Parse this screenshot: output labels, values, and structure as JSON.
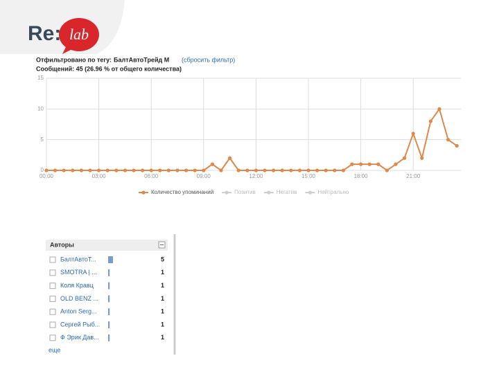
{
  "logo": {
    "left": "Re:",
    "right": "lab"
  },
  "header": {
    "filter_label": "Отфильтровано по тегу:",
    "filter_tag": "БалтАвтоТрейд М",
    "reset": "(сбросить фильтр)",
    "messages": "Сообщений: 45 (26.96 % от общего количества)"
  },
  "chart_data": {
    "type": "line",
    "categories": [
      "00:00",
      null,
      null,
      null,
      null,
      null,
      "03:00",
      null,
      null,
      null,
      null,
      null,
      "06:00",
      null,
      null,
      null,
      null,
      null,
      "09:00",
      null,
      null,
      null,
      null,
      null,
      "12:00",
      null,
      null,
      null,
      null,
      null,
      "15:00",
      null,
      null,
      null,
      null,
      null,
      "18:00",
      null,
      null,
      null,
      null,
      null,
      "21:00",
      null,
      null,
      null,
      null,
      null
    ],
    "series": [
      {
        "name": "Количество упоминаний",
        "color": "#e0874a",
        "values": [
          0,
          0,
          0,
          0,
          0,
          0,
          0,
          0,
          0,
          0,
          0,
          0,
          0,
          0,
          0,
          0,
          0,
          0,
          0,
          1,
          0,
          2,
          0,
          0,
          0,
          0,
          0,
          0,
          0,
          0,
          0,
          0,
          0,
          0,
          0,
          1,
          1,
          1,
          1,
          0,
          1,
          2,
          6,
          2,
          8,
          10,
          5,
          4
        ]
      }
    ],
    "legend_inactive": [
      {
        "name": "Позитив",
        "color": "#cfcfcf"
      },
      {
        "name": "Негатив",
        "color": "#cfcfcf"
      },
      {
        "name": "Нейтрально",
        "color": "#cfcfcf"
      }
    ],
    "ylim": [
      0,
      15
    ],
    "yticks": [
      0,
      5,
      10,
      15
    ],
    "grid": true
  },
  "authors": {
    "title": "Авторы",
    "rows": [
      [
        "БалтАвтоТ...",
        5
      ],
      [
        "SMOTRA | ...",
        1
      ],
      [
        "Коля Кравц",
        1
      ],
      [
        "OLD BENZ ...",
        1
      ],
      [
        "Anton Serg...",
        1
      ],
      [
        "Сергей Рыб...",
        1
      ],
      [
        "Ф Эрик Дав...",
        1
      ]
    ],
    "more": "еще"
  }
}
